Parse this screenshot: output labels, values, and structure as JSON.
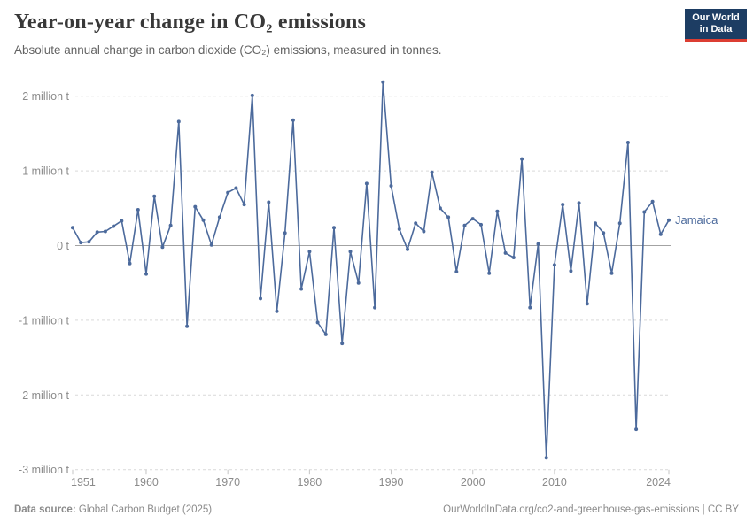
{
  "header": {
    "title": "Year-on-year change in CO₂ emissions",
    "subtitle": "Absolute annual change in carbon dioxide (CO₂) emissions, measured in tonnes."
  },
  "logo": {
    "line1": "Our World",
    "line2": "in Data"
  },
  "footer": {
    "source_label": "Data source:",
    "source_text": "Global Carbon Budget (2025)",
    "link_text": "OurWorldInData.org/co2-and-greenhouse-gas-emissions | CC BY"
  },
  "chart_data": {
    "type": "line",
    "title": "Year-on-year change in CO₂ emissions",
    "entity_label": "Jamaica",
    "unit": "million tonnes",
    "xlim": [
      1951,
      2024
    ],
    "ylim": [
      -3,
      2.35
    ],
    "grid": "dashed horizontal gridlines, solid zero line",
    "legend_position": "end-of-line label, right of last point",
    "years": [
      1951,
      1952,
      1953,
      1954,
      1955,
      1956,
      1957,
      1958,
      1959,
      1960,
      1961,
      1962,
      1963,
      1964,
      1965,
      1966,
      1967,
      1968,
      1969,
      1970,
      1971,
      1972,
      1973,
      1974,
      1975,
      1976,
      1977,
      1978,
      1979,
      1980,
      1981,
      1982,
      1983,
      1984,
      1985,
      1986,
      1987,
      1988,
      1989,
      1990,
      1991,
      1992,
      1993,
      1994,
      1995,
      1996,
      1997,
      1998,
      1999,
      2000,
      2001,
      2002,
      2003,
      2004,
      2005,
      2006,
      2007,
      2008,
      2009,
      2010,
      2011,
      2012,
      2013,
      2014,
      2015,
      2016,
      2017,
      2018,
      2019,
      2020,
      2021,
      2022,
      2023,
      2024
    ],
    "values": [
      0.24,
      0.04,
      0.05,
      0.18,
      0.19,
      0.26,
      0.33,
      -0.24,
      0.48,
      -0.38,
      0.66,
      -0.02,
      0.27,
      1.66,
      -1.08,
      0.52,
      0.34,
      0.01,
      0.38,
      0.71,
      0.77,
      0.55,
      2.01,
      -0.71,
      0.58,
      -0.88,
      0.17,
      1.68,
      -0.58,
      -0.08,
      -1.03,
      -1.19,
      0.24,
      -1.31,
      -0.08,
      -0.5,
      0.83,
      -0.83,
      2.19,
      0.8,
      0.22,
      -0.05,
      0.3,
      0.19,
      0.98,
      0.5,
      0.38,
      -0.35,
      0.27,
      0.36,
      0.28,
      -0.37,
      0.46,
      -0.1,
      -0.16,
      1.16,
      -0.83,
      0.02,
      -2.84,
      -0.26,
      0.55,
      -0.34,
      0.57,
      -0.78,
      0.3,
      0.17,
      -0.37,
      0.3,
      1.38,
      -2.46,
      0.45,
      0.59,
      0.15,
      0.34
    ],
    "y_ticks": [
      {
        "value": 2,
        "label": "2 million t"
      },
      {
        "value": 1,
        "label": "1 million t"
      },
      {
        "value": 0,
        "label": "0 t"
      },
      {
        "value": -1,
        "label": "-1 million t"
      },
      {
        "value": -2,
        "label": "-2 million t"
      },
      {
        "value": -3,
        "label": "-3 million t"
      }
    ],
    "x_ticks": [
      {
        "year": 1951,
        "label": "1951"
      },
      {
        "year": 1960,
        "label": "1960"
      },
      {
        "year": 1970,
        "label": "1970"
      },
      {
        "year": 1980,
        "label": "1980"
      },
      {
        "year": 1990,
        "label": "1990"
      },
      {
        "year": 2000,
        "label": "2000"
      },
      {
        "year": 2010,
        "label": "2010"
      },
      {
        "year": 2024,
        "label": "2024"
      }
    ],
    "colors": {
      "line": "#4C6A9C",
      "entity_label": "#4C6A9C",
      "grid": "#d9d9d9",
      "zero_line": "#a3a3a3",
      "axis_text": "#8b8b8b",
      "tick_mark": "#c4c4c4"
    }
  }
}
